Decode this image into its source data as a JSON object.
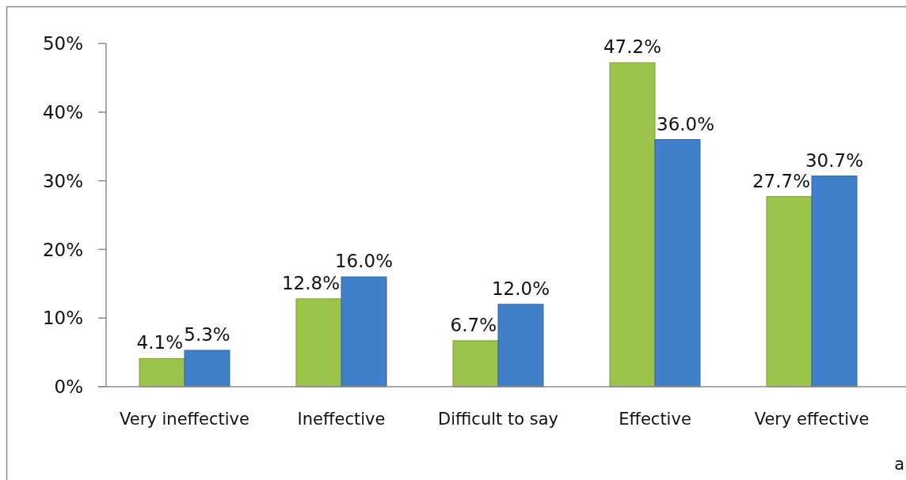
{
  "chart_data": {
    "type": "bar",
    "categories": [
      "Very ineffective",
      "Ineffective",
      "Difficult to say",
      "Effective",
      "Very effective"
    ],
    "series": [
      {
        "color": "#9bc34a",
        "values": [
          4.1,
          12.8,
          6.7,
          47.2,
          27.7
        ],
        "value_labels": [
          "4.1%",
          "12.8%",
          "6.7%",
          "47.2%",
          "27.7%"
        ]
      },
      {
        "color": "#3f80c9",
        "values": [
          5.3,
          16.0,
          12.0,
          36.0,
          30.7
        ],
        "value_labels": [
          "5.3%",
          "16.0%",
          "12.0%",
          "36.0%",
          "30.7%"
        ]
      }
    ],
    "ylim": [
      0,
      50
    ],
    "yticks": [
      {
        "value": 0,
        "label": "0%"
      },
      {
        "value": 10,
        "label": "10%"
      },
      {
        "value": 20,
        "label": "20%"
      },
      {
        "value": 30,
        "label": "30%"
      },
      {
        "value": 40,
        "label": "40%"
      },
      {
        "value": 50,
        "label": "50%"
      }
    ],
    "annotations": [
      "a"
    ]
  }
}
